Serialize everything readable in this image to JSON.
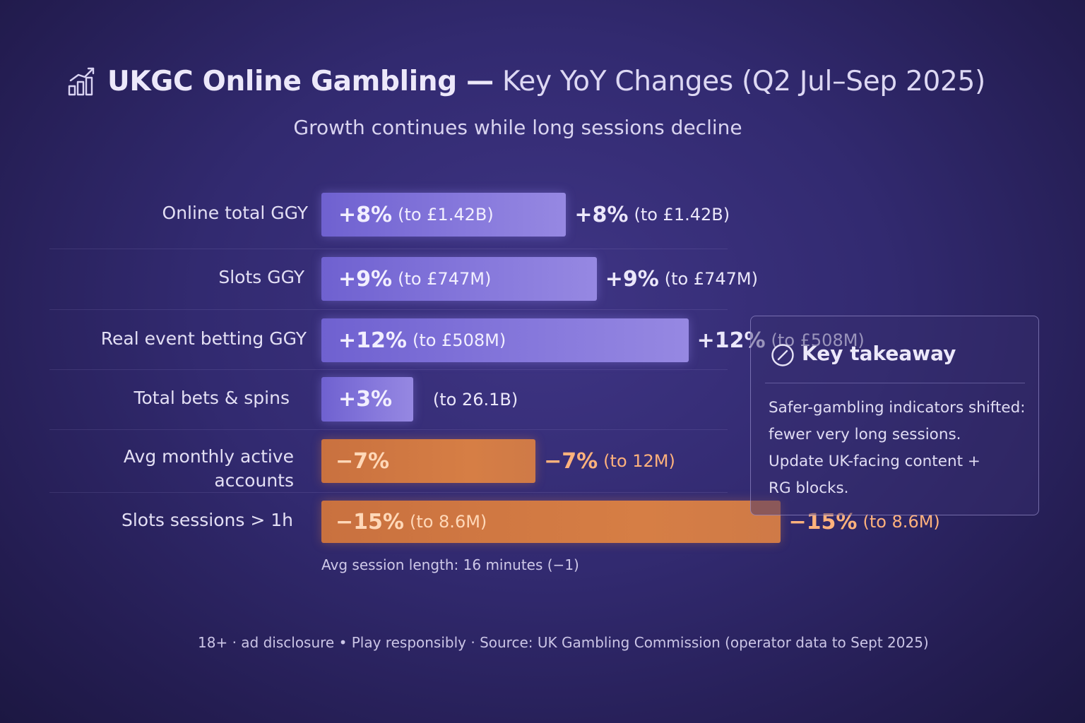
{
  "title": {
    "icon": "bar-chart-trend-icon",
    "strong": "UKGC Online Gambling —",
    "light": "Key YoY Changes (Q2 Jul–Sep 2025)"
  },
  "subtitle": "Growth continues while long sessions decline",
  "colors": {
    "positive_bar": "#8779dc",
    "negative_bar": "#d67e45",
    "negative_text": "#ffb27c",
    "background": "#322a70"
  },
  "chart_data": {
    "type": "bar",
    "orientation": "horizontal",
    "unit": "% YoY change",
    "categories": [
      "Online total GGY",
      "Slots GGY",
      "Real event betting GGY",
      "Total bets & spins",
      "Avg monthly active accounts",
      "Slots sessions > 1h"
    ],
    "values": [
      8,
      9,
      12,
      3,
      -7,
      -15
    ],
    "bar_labels": [
      "+8%",
      "+9%",
      "+12%",
      "+3%",
      "−7%",
      "−15%"
    ],
    "bar_details": [
      "(to £1.42B)",
      "(to £747M)",
      "(to £508M)",
      "",
      "",
      "(to 8.6M)"
    ],
    "value_labels": [
      "+8%",
      "+9%",
      "+12%",
      "",
      "−7%",
      "−15%"
    ],
    "value_details": [
      "(to £1.42B)",
      "(to £747M)",
      "(to £508M)",
      "(to 26.1B)",
      "(to 12M)",
      "(to 8.6M)"
    ],
    "annotation": "Avg session length: 16 minutes (−1)"
  },
  "takeaway": {
    "icon": "check-circle-icon",
    "title": "Key takeaway",
    "lines": [
      "Safer-gambling indicators shifted:",
      "fewer very long sessions.",
      "Update UK-facing content +",
      "RG blocks."
    ]
  },
  "footer": "18+ · ad disclosure  •  Play responsibly · Source: UK Gambling Commission (operator data to Sept 2025)"
}
